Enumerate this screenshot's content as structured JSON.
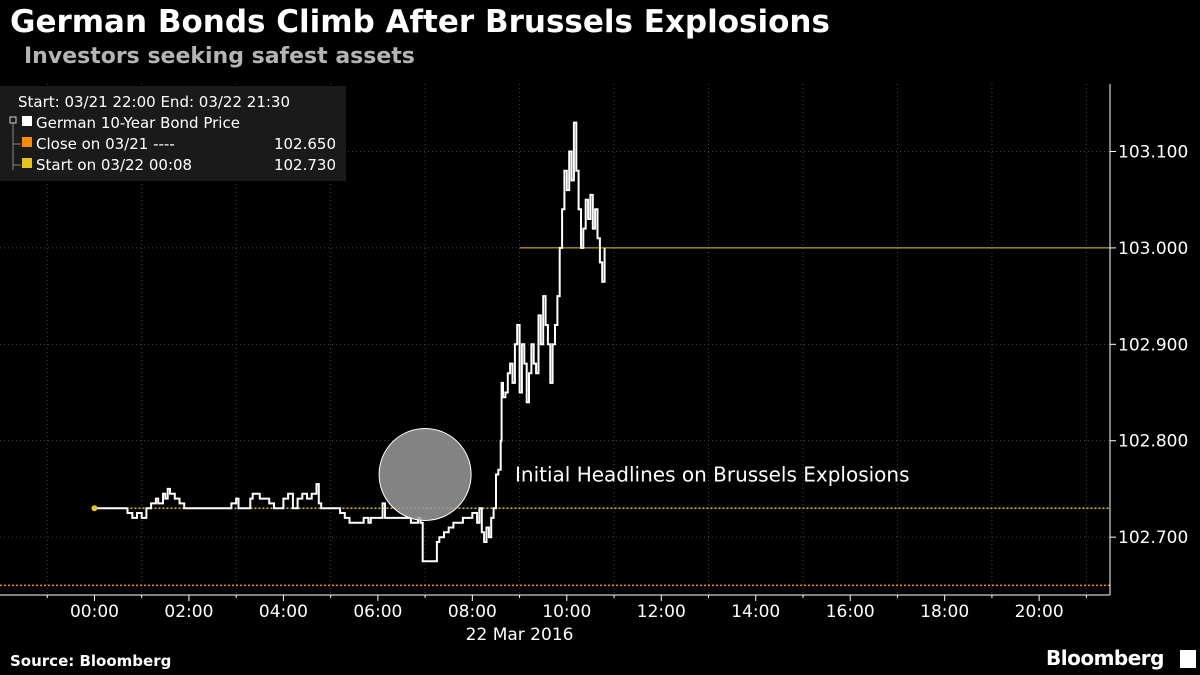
{
  "header": {
    "title": "German Bonds Climb After Brussels Explosions",
    "subtitle": "Investors seeking safest assets"
  },
  "footer": {
    "source": "Source: Bloomberg",
    "brand": "Bloomberg"
  },
  "colors": {
    "background": "#000000",
    "price_line": "#ffffff",
    "close_line": "#ff8c00",
    "start_line": "#e6c619",
    "grid": "#444444",
    "highlight_circle": "#9a9a9a"
  },
  "chart_data": {
    "type": "line",
    "title": "German Bonds Climb After Brussels Explosions",
    "subtitle": "Investors seeking safest assets",
    "x_date_label": "22 Mar 2016",
    "x_unit": "hours",
    "x_ticks": [
      {
        "value": 0,
        "label": "00:00"
      },
      {
        "value": 2,
        "label": "02:00"
      },
      {
        "value": 4,
        "label": "04:00"
      },
      {
        "value": 6,
        "label": "06:00"
      },
      {
        "value": 8,
        "label": "08:00"
      },
      {
        "value": 10,
        "label": "10:00"
      },
      {
        "value": 12,
        "label": "12:00"
      },
      {
        "value": 14,
        "label": "14:00"
      },
      {
        "value": 16,
        "label": "16:00"
      },
      {
        "value": 18,
        "label": "18:00"
      },
      {
        "value": 20,
        "label": "20:00"
      }
    ],
    "xlim": [
      -2,
      21.5
    ],
    "ylim": [
      102.64,
      103.17
    ],
    "y_ticks": [
      {
        "value": 102.7,
        "label": "102.700"
      },
      {
        "value": 102.8,
        "label": "102.800"
      },
      {
        "value": 102.9,
        "label": "102.900"
      },
      {
        "value": 103.0,
        "label": "103.000"
      },
      {
        "value": 103.1,
        "label": "103.100"
      }
    ],
    "grid": true,
    "legend": {
      "placement": "top-left",
      "header": "Start: 03/21 22:00 End: 03/22 21:30",
      "entries": [
        {
          "name": "German 10-Year Bond Price",
          "value": "",
          "color": "#ffffff"
        },
        {
          "name": "Close on 03/21 ----",
          "value": "102.650",
          "color": "#ff8c00"
        },
        {
          "name": "Start on 03/22 00:08",
          "value": "102.730",
          "color": "#e6c619"
        }
      ]
    },
    "reference_lines": [
      {
        "name": "Close on 03/21",
        "value": 102.65,
        "style": "dotted",
        "color": "#ff8c00"
      },
      {
        "name": "Start on 03/22 00:08",
        "value": 102.73,
        "style": "dotted",
        "color": "#e6c619"
      }
    ],
    "last_value_line": {
      "value": 103.0,
      "from_x": 9.0,
      "color": "#e6c619"
    },
    "annotation": {
      "text": "Initial Headlines on Brussels Explosions",
      "x": 7.0,
      "y": 102.765
    },
    "series": [
      {
        "name": "German 10-Year Bond Price",
        "color": "#ffffff",
        "points": [
          [
            0.0,
            102.73
          ],
          [
            0.3,
            102.73
          ],
          [
            0.6,
            102.73
          ],
          [
            0.7,
            102.725
          ],
          [
            0.8,
            102.72
          ],
          [
            0.9,
            102.725
          ],
          [
            1.0,
            102.72
          ],
          [
            1.1,
            102.73
          ],
          [
            1.2,
            102.735
          ],
          [
            1.3,
            102.74
          ],
          [
            1.35,
            102.735
          ],
          [
            1.45,
            102.745
          ],
          [
            1.5,
            102.74
          ],
          [
            1.55,
            102.75
          ],
          [
            1.6,
            102.745
          ],
          [
            1.7,
            102.74
          ],
          [
            1.8,
            102.735
          ],
          [
            1.9,
            102.73
          ],
          [
            2.0,
            102.73
          ],
          [
            2.3,
            102.73
          ],
          [
            2.6,
            102.73
          ],
          [
            2.8,
            102.73
          ],
          [
            2.9,
            102.735
          ],
          [
            3.0,
            102.74
          ],
          [
            3.05,
            102.73
          ],
          [
            3.2,
            102.73
          ],
          [
            3.3,
            102.74
          ],
          [
            3.35,
            102.745
          ],
          [
            3.5,
            102.74
          ],
          [
            3.6,
            102.74
          ],
          [
            3.7,
            102.735
          ],
          [
            3.8,
            102.73
          ],
          [
            3.9,
            102.73
          ],
          [
            4.0,
            102.74
          ],
          [
            4.1,
            102.745
          ],
          [
            4.2,
            102.73
          ],
          [
            4.3,
            102.74
          ],
          [
            4.4,
            102.745
          ],
          [
            4.5,
            102.74
          ],
          [
            4.6,
            102.745
          ],
          [
            4.7,
            102.755
          ],
          [
            4.75,
            102.735
          ],
          [
            4.8,
            102.73
          ],
          [
            5.0,
            102.73
          ],
          [
            5.2,
            102.725
          ],
          [
            5.3,
            102.72
          ],
          [
            5.4,
            102.715
          ],
          [
            5.6,
            102.715
          ],
          [
            5.7,
            102.72
          ],
          [
            5.8,
            102.715
          ],
          [
            5.85,
            102.72
          ],
          [
            6.0,
            102.72
          ],
          [
            6.1,
            102.735
          ],
          [
            6.15,
            102.72
          ],
          [
            6.3,
            102.72
          ],
          [
            6.6,
            102.72
          ],
          [
            6.7,
            102.715
          ],
          [
            6.8,
            102.715
          ],
          [
            6.85,
            102.72
          ],
          [
            6.9,
            102.715
          ],
          [
            6.95,
            102.675
          ],
          [
            7.1,
            102.675
          ],
          [
            7.2,
            102.675
          ],
          [
            7.25,
            102.695
          ],
          [
            7.3,
            102.7
          ],
          [
            7.4,
            102.705
          ],
          [
            7.5,
            102.71
          ],
          [
            7.6,
            102.715
          ],
          [
            7.7,
            102.715
          ],
          [
            7.8,
            102.72
          ],
          [
            7.9,
            102.72
          ],
          [
            8.0,
            102.725
          ],
          [
            8.1,
            102.715
          ],
          [
            8.15,
            102.73
          ],
          [
            8.2,
            102.705
          ],
          [
            8.25,
            102.695
          ],
          [
            8.3,
            102.71
          ],
          [
            8.35,
            102.7
          ],
          [
            8.4,
            102.72
          ],
          [
            8.45,
            102.73
          ],
          [
            8.5,
            102.765
          ],
          [
            8.55,
            102.77
          ],
          [
            8.6,
            102.8
          ],
          [
            8.62,
            102.86
          ],
          [
            8.65,
            102.845
          ],
          [
            8.7,
            102.85
          ],
          [
            8.75,
            102.87
          ],
          [
            8.8,
            102.88
          ],
          [
            8.85,
            102.86
          ],
          [
            8.9,
            102.9
          ],
          [
            8.95,
            102.92
          ],
          [
            9.0,
            102.85
          ],
          [
            9.05,
            102.9
          ],
          [
            9.1,
            102.88
          ],
          [
            9.15,
            102.84
          ],
          [
            9.2,
            102.87
          ],
          [
            9.25,
            102.9
          ],
          [
            9.3,
            102.88
          ],
          [
            9.35,
            102.87
          ],
          [
            9.4,
            102.93
          ],
          [
            9.45,
            102.9
          ],
          [
            9.5,
            102.95
          ],
          [
            9.55,
            102.92
          ],
          [
            9.6,
            102.9
          ],
          [
            9.65,
            102.86
          ],
          [
            9.7,
            102.9
          ],
          [
            9.75,
            102.92
          ],
          [
            9.8,
            102.95
          ],
          [
            9.85,
            103.0
          ],
          [
            9.9,
            103.04
          ],
          [
            9.95,
            103.08
          ],
          [
            10.0,
            103.06
          ],
          [
            10.05,
            103.1
          ],
          [
            10.1,
            103.07
          ],
          [
            10.15,
            103.13
          ],
          [
            10.2,
            103.08
          ],
          [
            10.25,
            103.04
          ],
          [
            10.3,
            103.0
          ],
          [
            10.35,
            103.02
          ],
          [
            10.4,
            103.05
          ],
          [
            10.45,
            103.03
          ],
          [
            10.5,
            103.055
          ],
          [
            10.55,
            103.02
          ],
          [
            10.6,
            103.04
          ],
          [
            10.65,
            103.01
          ],
          [
            10.7,
            102.985
          ],
          [
            10.75,
            102.965
          ],
          [
            10.8,
            103.0
          ]
        ]
      }
    ]
  }
}
